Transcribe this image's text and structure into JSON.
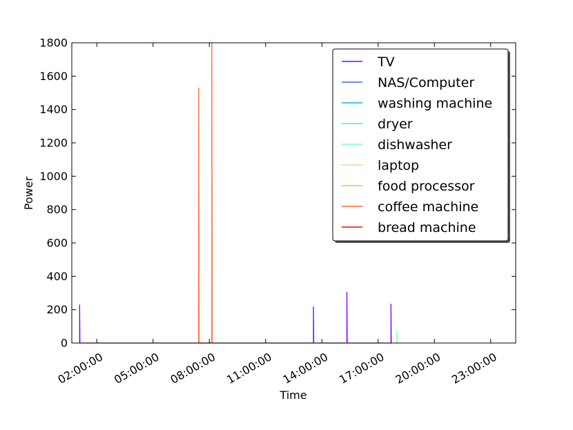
{
  "chart_data": {
    "type": "line",
    "xlabel": "Time",
    "ylabel": "Power",
    "ylim": [
      0,
      1800
    ],
    "xlim": [
      "00:40",
      "24:20"
    ],
    "y_ticks": [
      0,
      200,
      400,
      600,
      800,
      1000,
      1200,
      1400,
      1600,
      1800
    ],
    "x_ticks": [
      "02:00:00",
      "05:00:00",
      "08:00:00",
      "11:00:00",
      "14:00:00",
      "17:00:00",
      "20:00:00",
      "23:00:00"
    ],
    "grid": false,
    "legend_position": "top-right",
    "series": [
      {
        "name": "TV",
        "color": "#8000ff",
        "points": [
          [
            "01:05",
            0
          ],
          [
            "01:05",
            230
          ],
          [
            "01:06",
            0
          ],
          [
            "13:33",
            0
          ],
          [
            "13:33",
            220
          ],
          [
            "13:34",
            0
          ],
          [
            "15:20",
            0
          ],
          [
            "15:20",
            307
          ],
          [
            "15:21",
            0
          ],
          [
            "17:41",
            0
          ],
          [
            "17:41",
            235
          ],
          [
            "17:42",
            0
          ]
        ]
      },
      {
        "name": "NAS/Computer",
        "color": "#4062fa",
        "points": []
      },
      {
        "name": "washing machine",
        "color": "#00b5eb",
        "points": []
      },
      {
        "name": "dryer",
        "color": "#40ecd4",
        "points": []
      },
      {
        "name": "dishwasher",
        "color": "#80ffb4",
        "points": [
          [
            "18:00",
            0
          ],
          [
            "18:00",
            78
          ],
          [
            "18:01",
            0
          ]
        ]
      },
      {
        "name": "laptop",
        "color": "#c0eb8d",
        "points": []
      },
      {
        "name": "food processor",
        "color": "#ffb360",
        "points": []
      },
      {
        "name": "coffee machine",
        "color": "#ff6030",
        "points": [
          [
            "07:26",
            0
          ],
          [
            "07:26",
            1530
          ],
          [
            "07:27",
            0
          ],
          [
            "08:08",
            0
          ],
          [
            "08:08",
            1800
          ],
          [
            "08:09",
            0
          ]
        ]
      },
      {
        "name": "bread machine",
        "color": "#ff0000",
        "points": []
      }
    ]
  }
}
